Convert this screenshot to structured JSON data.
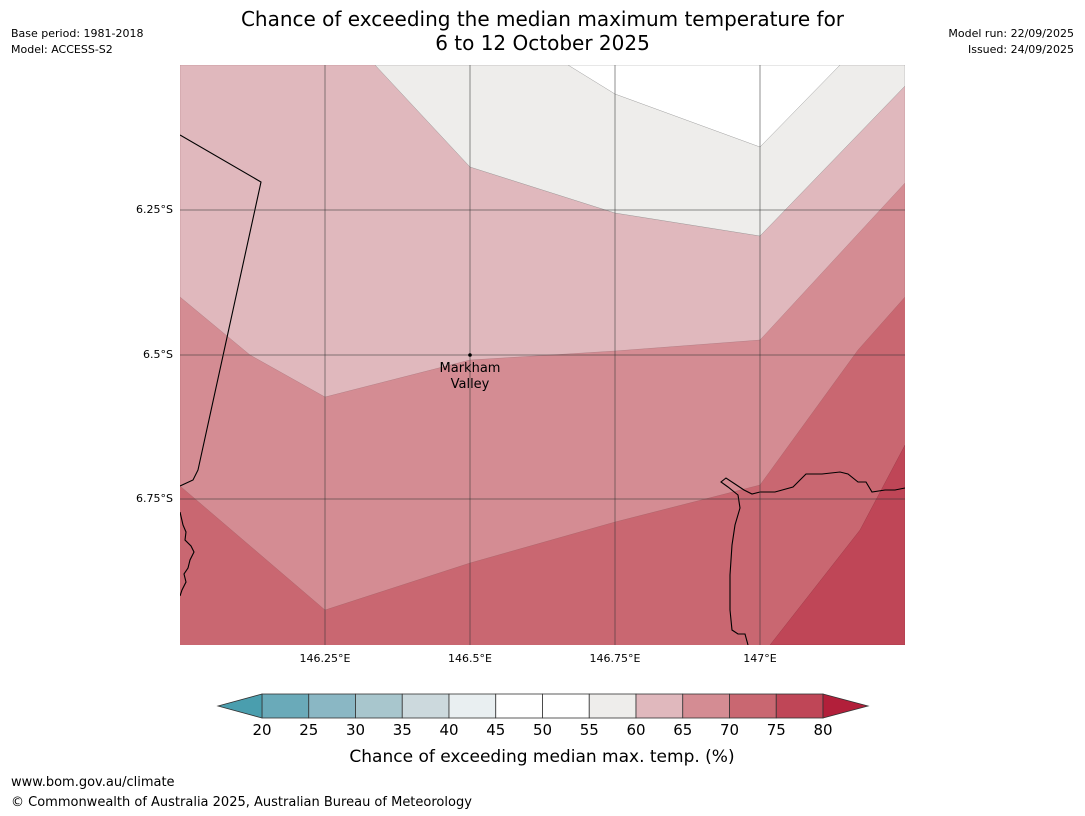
{
  "header": {
    "base_period": "Base period: 1981-2018",
    "model": "Model: ACCESS-S2",
    "model_run": "Model run: 22/09/2025",
    "issued": "Issued: 24/09/2025",
    "title_line1": "Chance of exceeding the median maximum temperature for",
    "title_line2": "6 to 12 October 2025"
  },
  "map": {
    "lat_labels": [
      "6.25°S",
      "6.5°S",
      "6.75°S"
    ],
    "lon_labels": [
      "146.25°E",
      "146.5°E",
      "146.75°E",
      "147°E"
    ],
    "location": {
      "name_line1": "Markham",
      "name_line2": "Valley",
      "lat": -6.5,
      "lon": 146.5
    },
    "extent": {
      "lon_min": 146.0,
      "lon_max": 147.25,
      "lat_min": -7.0,
      "lat_max": -6.0
    }
  },
  "colorbar": {
    "ticks": [
      "20",
      "25",
      "30",
      "35",
      "40",
      "45",
      "50",
      "55",
      "60",
      "65",
      "70",
      "75",
      "80"
    ],
    "colors": [
      "#6aaab9",
      "#8ab7c4",
      "#a8c6cd",
      "#ccd9dd",
      "#e9eff1",
      "#ffffff",
      "#ffffff",
      "#eeedeb",
      "#e0b8bd",
      "#d48c93",
      "#c96771",
      "#bf4657"
    ],
    "under_color": "#4a9eae",
    "over_color": "#b21f3a",
    "label": "Chance of exceeding median max. temp. (%)"
  },
  "footer": {
    "url": "www.bom.gov.au/climate",
    "copyright": "© Commonwealth of Australia 2025, Australian Bureau of Meteorology"
  }
}
